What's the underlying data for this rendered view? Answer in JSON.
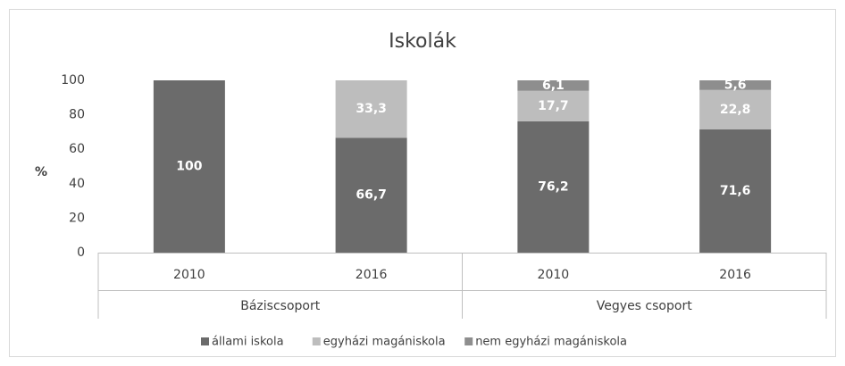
{
  "chart_data": {
    "type": "stacked_bar",
    "title": "Iskolák",
    "y_label": "%",
    "categories": [
      "2010",
      "2016",
      "2010",
      "2016"
    ],
    "groups": [
      "Báziscsoport",
      "Vegyes csoport"
    ],
    "series": [
      {
        "name": "állami iskola",
        "color": "#6b6b6b",
        "values": [
          100,
          66.7,
          76.2,
          71.6
        ],
        "value_labels": [
          "100",
          "66,7",
          "76,2",
          "71,6"
        ]
      },
      {
        "name": "egyházi magániskola",
        "color": "#bdbdbd",
        "values": [
          null,
          33.3,
          17.7,
          22.8
        ],
        "value_labels": [
          null,
          "33,3",
          "17,7",
          "22,8"
        ]
      },
      {
        "name": "nem egyházi magániskola",
        "color": "#8e8e8e",
        "values": [
          null,
          null,
          6.1,
          5.6
        ],
        "value_labels": [
          null,
          null,
          "6,1",
          "5,6"
        ]
      }
    ],
    "ylim": [
      0,
      100
    ],
    "yticks": [
      0,
      20,
      40,
      60,
      80,
      100
    ],
    "grid": false,
    "legend": "bottom"
  }
}
